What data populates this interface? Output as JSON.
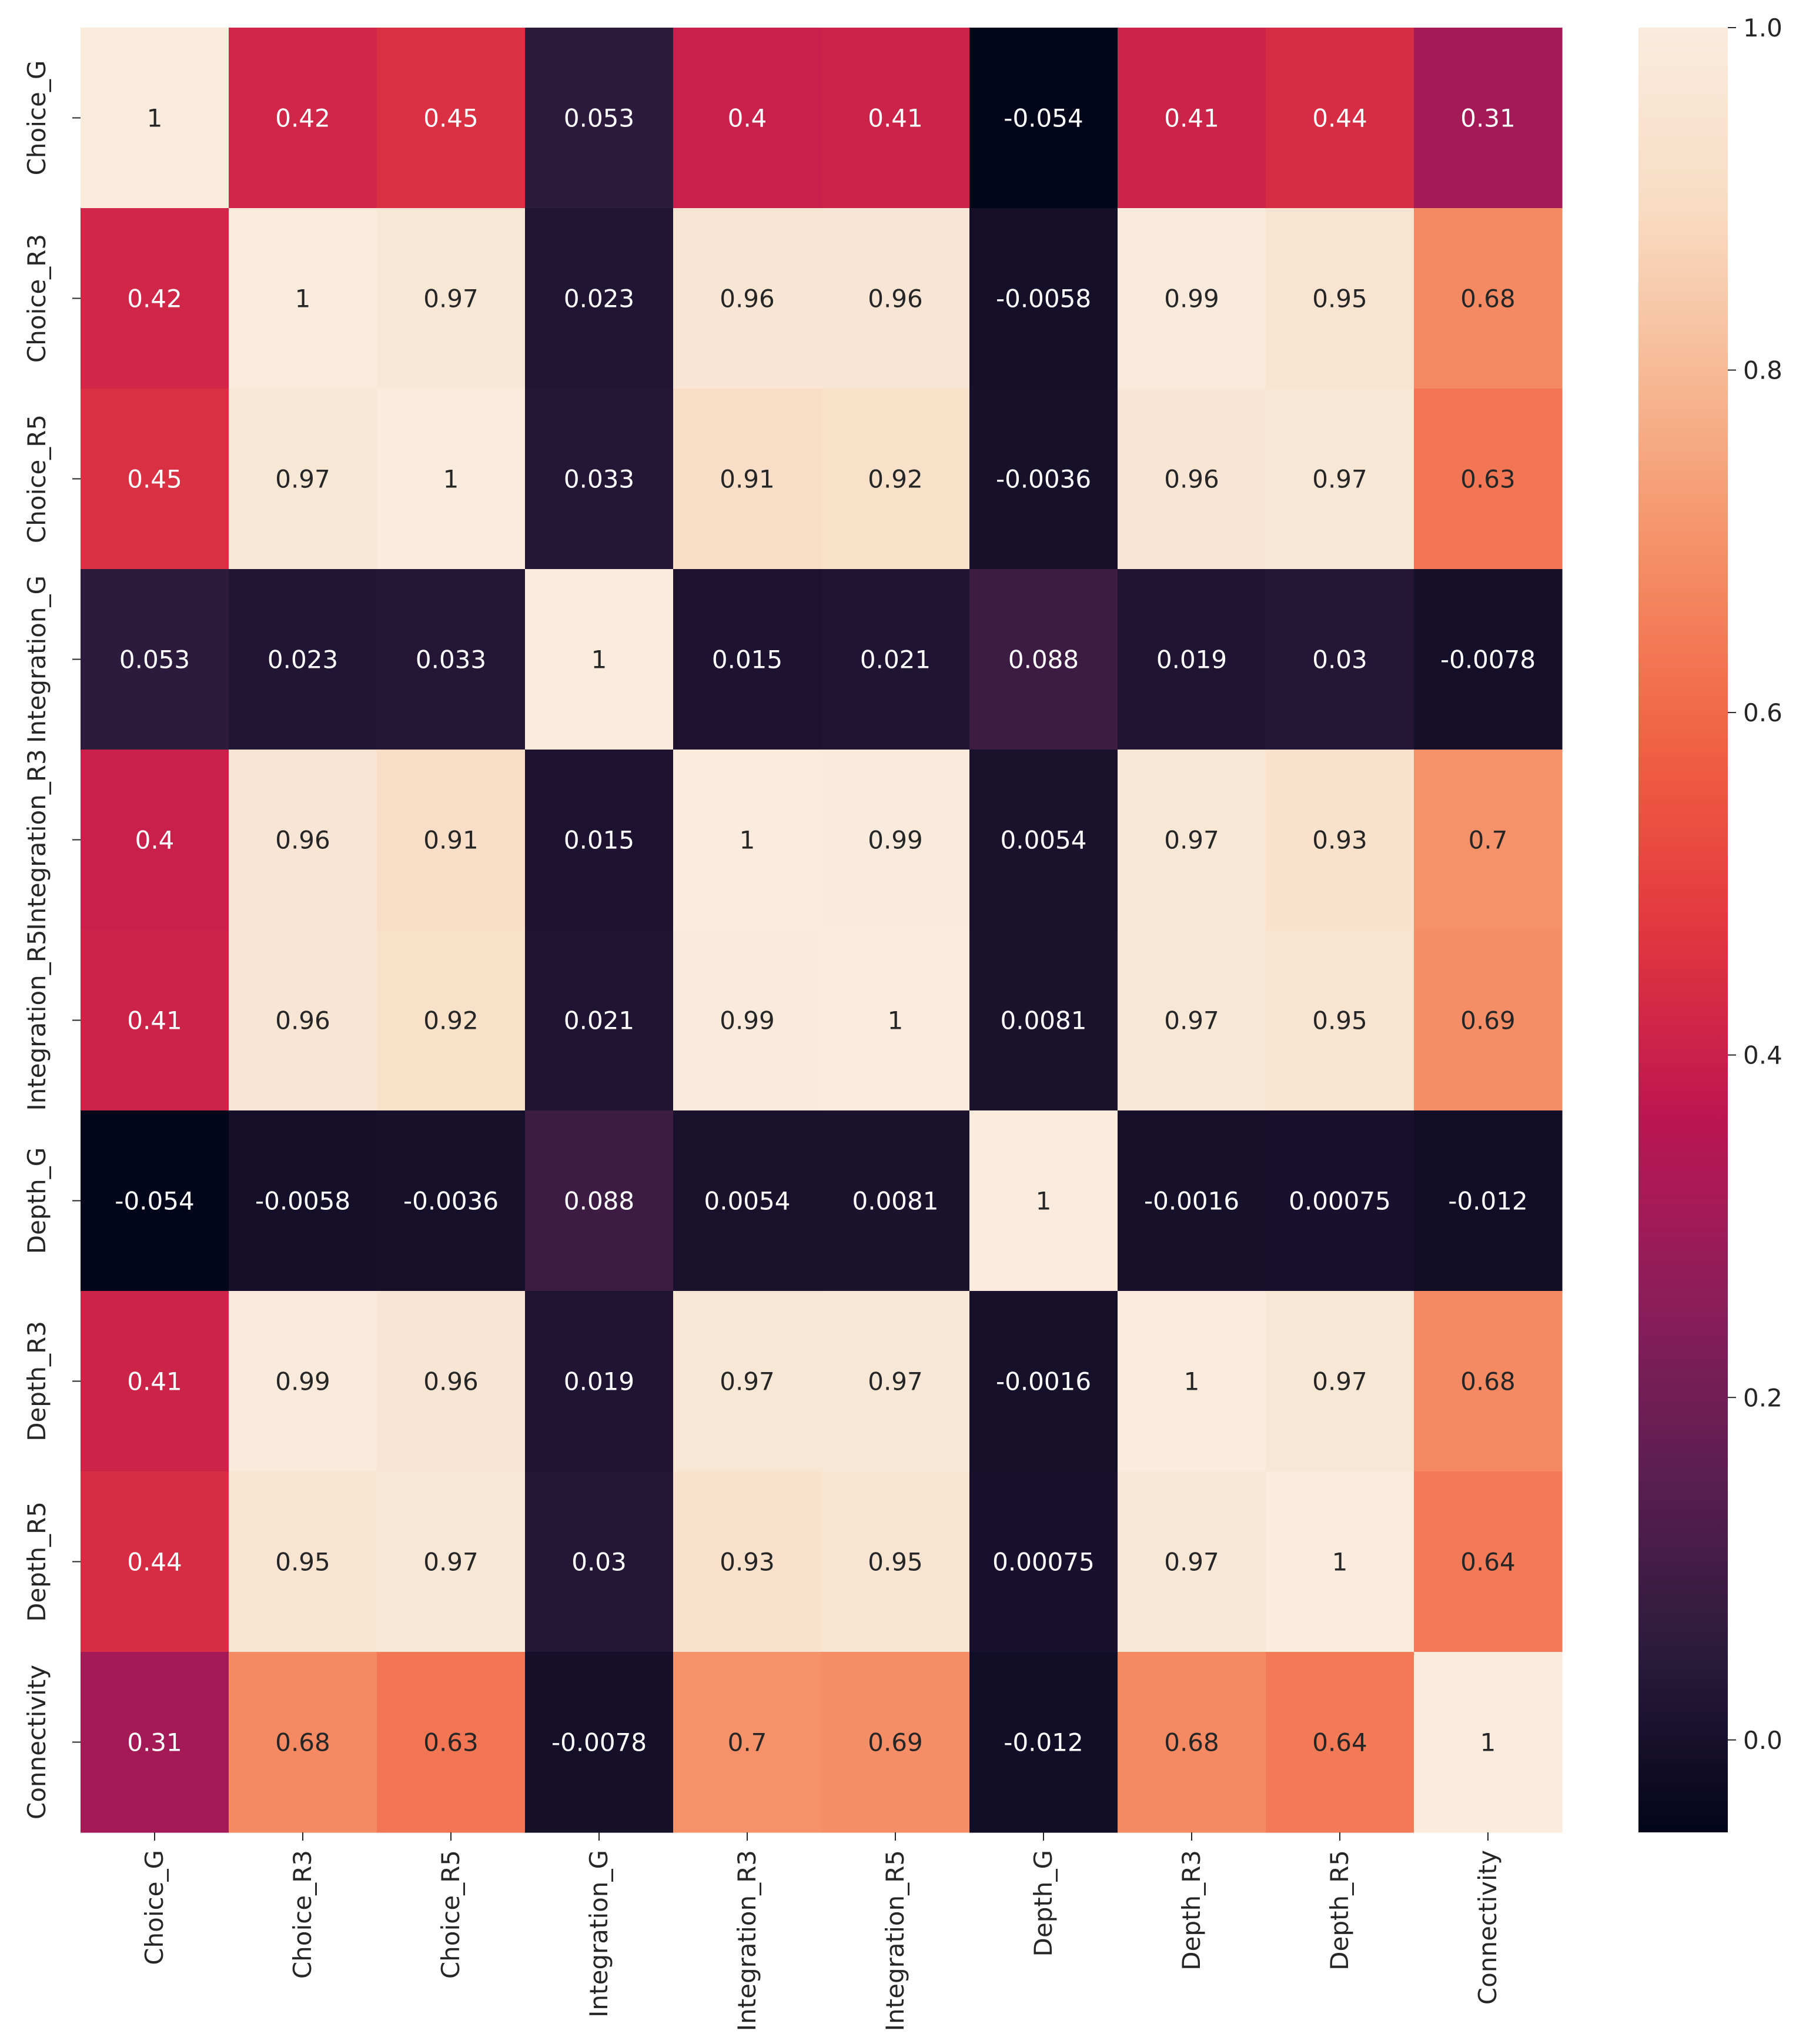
{
  "chart_data": {
    "type": "heatmap",
    "title": "",
    "xlabel": "",
    "ylabel": "",
    "row_labels": [
      "Choice_G",
      "Choice_R3",
      "Choice_R5",
      "Integration_G",
      "Integration_R3",
      "Integration_R5",
      "Depth_G",
      "Depth_R3",
      "Depth_R5",
      "Connectivity"
    ],
    "col_labels": [
      "Choice_G",
      "Choice_R3",
      "Choice_R5",
      "Integration_G",
      "Integration_R3",
      "Integration_R5",
      "Depth_G",
      "Depth_R3",
      "Depth_R5",
      "Connectivity"
    ],
    "values": [
      [
        1,
        0.42,
        0.45,
        0.053,
        0.4,
        0.41,
        -0.054,
        0.41,
        0.44,
        0.31
      ],
      [
        0.42,
        1,
        0.97,
        0.023,
        0.96,
        0.96,
        -0.0058,
        0.99,
        0.95,
        0.68
      ],
      [
        0.45,
        0.97,
        1,
        0.033,
        0.91,
        0.92,
        -0.0036,
        0.96,
        0.97,
        0.63
      ],
      [
        0.053,
        0.023,
        0.033,
        1,
        0.015,
        0.021,
        0.088,
        0.019,
        0.03,
        -0.0078
      ],
      [
        0.4,
        0.96,
        0.91,
        0.015,
        1,
        0.99,
        0.0054,
        0.97,
        0.93,
        0.7
      ],
      [
        0.41,
        0.96,
        0.92,
        0.021,
        0.99,
        1,
        0.0081,
        0.97,
        0.95,
        0.69
      ],
      [
        -0.054,
        -0.0058,
        -0.0036,
        0.088,
        0.0054,
        0.0081,
        1,
        -0.0016,
        0.00075,
        -0.012
      ],
      [
        0.41,
        0.99,
        0.96,
        0.019,
        0.97,
        0.97,
        -0.0016,
        1,
        0.97,
        0.68
      ],
      [
        0.44,
        0.95,
        0.97,
        0.03,
        0.93,
        0.95,
        0.00075,
        0.97,
        1,
        0.64
      ],
      [
        0.31,
        0.68,
        0.63,
        -0.0078,
        0.7,
        0.69,
        -0.012,
        0.68,
        0.64,
        1
      ]
    ],
    "annotations": [
      [
        "1",
        "0.42",
        "0.45",
        "0.053",
        "0.4",
        "0.41",
        "-0.054",
        "0.41",
        "0.44",
        "0.31"
      ],
      [
        "0.42",
        "1",
        "0.97",
        "0.023",
        "0.96",
        "0.96",
        "-0.0058",
        "0.99",
        "0.95",
        "0.68"
      ],
      [
        "0.45",
        "0.97",
        "1",
        "0.033",
        "0.91",
        "0.92",
        "-0.0036",
        "0.96",
        "0.97",
        "0.63"
      ],
      [
        "0.053",
        "0.023",
        "0.033",
        "1",
        "0.015",
        "0.021",
        "0.088",
        "0.019",
        "0.03",
        "-0.0078"
      ],
      [
        "0.4",
        "0.96",
        "0.91",
        "0.015",
        "1",
        "0.99",
        "0.0054",
        "0.97",
        "0.93",
        "0.7"
      ],
      [
        "0.41",
        "0.96",
        "0.92",
        "0.021",
        "0.99",
        "1",
        "0.0081",
        "0.97",
        "0.95",
        "0.69"
      ],
      [
        "-0.054",
        "-0.0058",
        "-0.0036",
        "0.088",
        "0.0054",
        "0.0081",
        "1",
        "-0.0016",
        "0.00075",
        "-0.012"
      ],
      [
        "0.41",
        "0.99",
        "0.96",
        "0.019",
        "0.97",
        "0.97",
        "-0.0016",
        "1",
        "0.97",
        "0.68"
      ],
      [
        "0.44",
        "0.95",
        "0.97",
        "0.03",
        "0.93",
        "0.95",
        "0.00075",
        "0.97",
        "1",
        "0.64"
      ],
      [
        "0.31",
        "0.68",
        "0.63",
        "-0.0078",
        "0.7",
        "0.69",
        "-0.012",
        "0.68",
        "0.64",
        "1"
      ]
    ],
    "colorbar": {
      "vmin": -0.054,
      "vmax": 1.0,
      "ticks": [
        0.0,
        0.2,
        0.4,
        0.6,
        0.8,
        1.0
      ],
      "tick_labels": [
        "0.0",
        "0.2",
        "0.4",
        "0.6",
        "0.8",
        "1.0"
      ],
      "colormap": "rocket",
      "stops": [
        "#03051a",
        "#2b1b3c",
        "#5c1e51",
        "#8e1d5b",
        "#be1650",
        "#e2373f",
        "#f06043",
        "#f58c63",
        "#f6b691",
        "#f8dcc3",
        "#faebdd"
      ]
    },
    "text_color_dark": "#262626",
    "text_color_light": "#ffffff",
    "grid": false,
    "legend": "right"
  }
}
